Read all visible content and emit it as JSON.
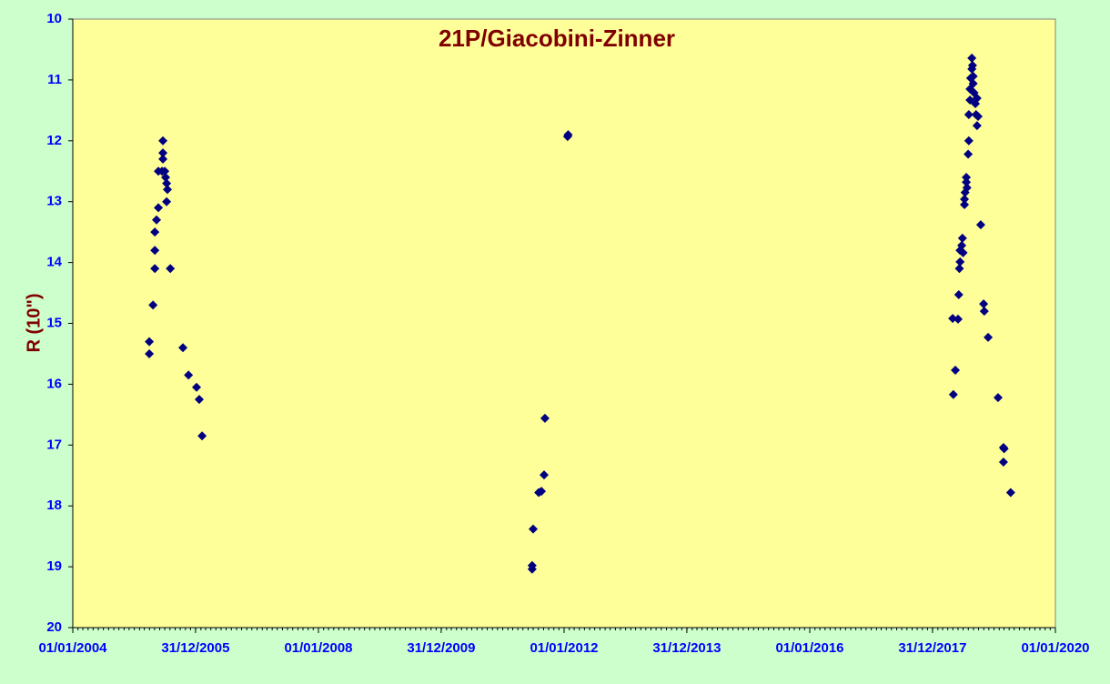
{
  "chart_data": {
    "type": "scatter",
    "title": "21P/Giacobini-Zinner",
    "y_label": "R (10\")",
    "x": [
      "2005-03-31",
      "2005-03-31",
      "2005-04-22",
      "2005-05-03",
      "2005-05-03",
      "2005-05-03",
      "2005-05-13",
      "2005-05-24",
      "2005-05-24",
      "2005-06-15",
      "2005-06-20",
      "2005-06-20",
      "2005-06-20",
      "2005-07-01",
      "2005-07-06",
      "2005-07-12",
      "2005-07-17",
      "2005-07-12",
      "2005-08-03",
      "2005-10-17",
      "2005-11-19",
      "2006-01-06",
      "2006-01-22",
      "2006-02-08",
      "2011-06-25",
      "2011-06-25",
      "2011-07-01",
      "2011-08-03",
      "2011-08-19",
      "2011-09-04",
      "2011-09-09",
      "2012-01-22",
      "2012-01-25",
      "2018-05-04",
      "2018-05-16",
      "2018-04-30",
      "2018-06-01",
      "2018-06-05",
      "2018-06-09",
      "2018-06-13",
      "2018-06-13",
      "2018-06-23",
      "2018-06-27",
      "2018-07-01",
      "2018-07-09",
      "2018-07-13",
      "2018-07-09",
      "2018-07-20",
      "2018-07-20",
      "2018-07-24",
      "2018-07-31",
      "2018-08-04",
      "2018-08-04",
      "2018-08-11",
      "2018-08-11",
      "2018-08-15",
      "2018-08-22",
      "2018-08-22",
      "2018-08-26",
      "2018-08-30",
      "2018-08-30",
      "2018-09-04",
      "2018-09-12",
      "2018-09-16",
      "2018-09-28",
      "2018-09-22",
      "2018-09-22",
      "2018-10-14",
      "2018-10-31",
      "2018-11-04",
      "2018-11-27",
      "2019-01-25",
      "2019-02-26",
      "2019-02-26",
      "2019-03-02",
      "2019-04-10"
    ],
    "series": [
      {
        "name": "21P/Giacobini-Zinner",
        "color": "#000080",
        "values": [
          15.3,
          15.5,
          14.7,
          14.1,
          13.8,
          13.5,
          13.3,
          13.1,
          12.5,
          12.5,
          12.0,
          12.2,
          12.3,
          12.5,
          12.6,
          12.7,
          12.8,
          13.0,
          14.1,
          15.4,
          15.85,
          16.05,
          16.25,
          16.85,
          18.98,
          19.04,
          18.38,
          17.78,
          17.76,
          17.49,
          16.56,
          11.93,
          11.9,
          16.17,
          15.77,
          14.92,
          14.93,
          14.53,
          14.1,
          13.99,
          13.8,
          13.72,
          13.6,
          13.84,
          12.96,
          12.85,
          13.05,
          12.6,
          12.68,
          12.77,
          12.22,
          12.0,
          11.57,
          11.33,
          11.15,
          10.97,
          10.82,
          10.64,
          10.76,
          10.94,
          11.06,
          11.21,
          11.39,
          11.57,
          11.6,
          11.75,
          11.3,
          13.38,
          14.68,
          14.8,
          15.23,
          16.22,
          17.04,
          17.28,
          17.06,
          17.78
        ]
      }
    ],
    "xlim": [
      "2004-01-01",
      "2020-01-01"
    ],
    "xticks": [
      {
        "value": "2004-01-01",
        "label": "01/01/2004"
      },
      {
        "value": "2005-12-31",
        "label": "31/12/2005"
      },
      {
        "value": "2008-01-01",
        "label": "01/01/2008"
      },
      {
        "value": "2009-12-31",
        "label": "31/12/2009"
      },
      {
        "value": "2012-01-01",
        "label": "01/01/2012"
      },
      {
        "value": "2013-12-31",
        "label": "31/12/2013"
      },
      {
        "value": "2016-01-01",
        "label": "01/01/2016"
      },
      {
        "value": "2017-12-31",
        "label": "31/12/2017"
      },
      {
        "value": "2020-01-01",
        "label": "01/01/2020"
      }
    ],
    "ylim": [
      20,
      10
    ],
    "yticks": [
      10,
      11,
      12,
      13,
      14,
      15,
      16,
      17,
      18,
      19,
      20
    ]
  }
}
